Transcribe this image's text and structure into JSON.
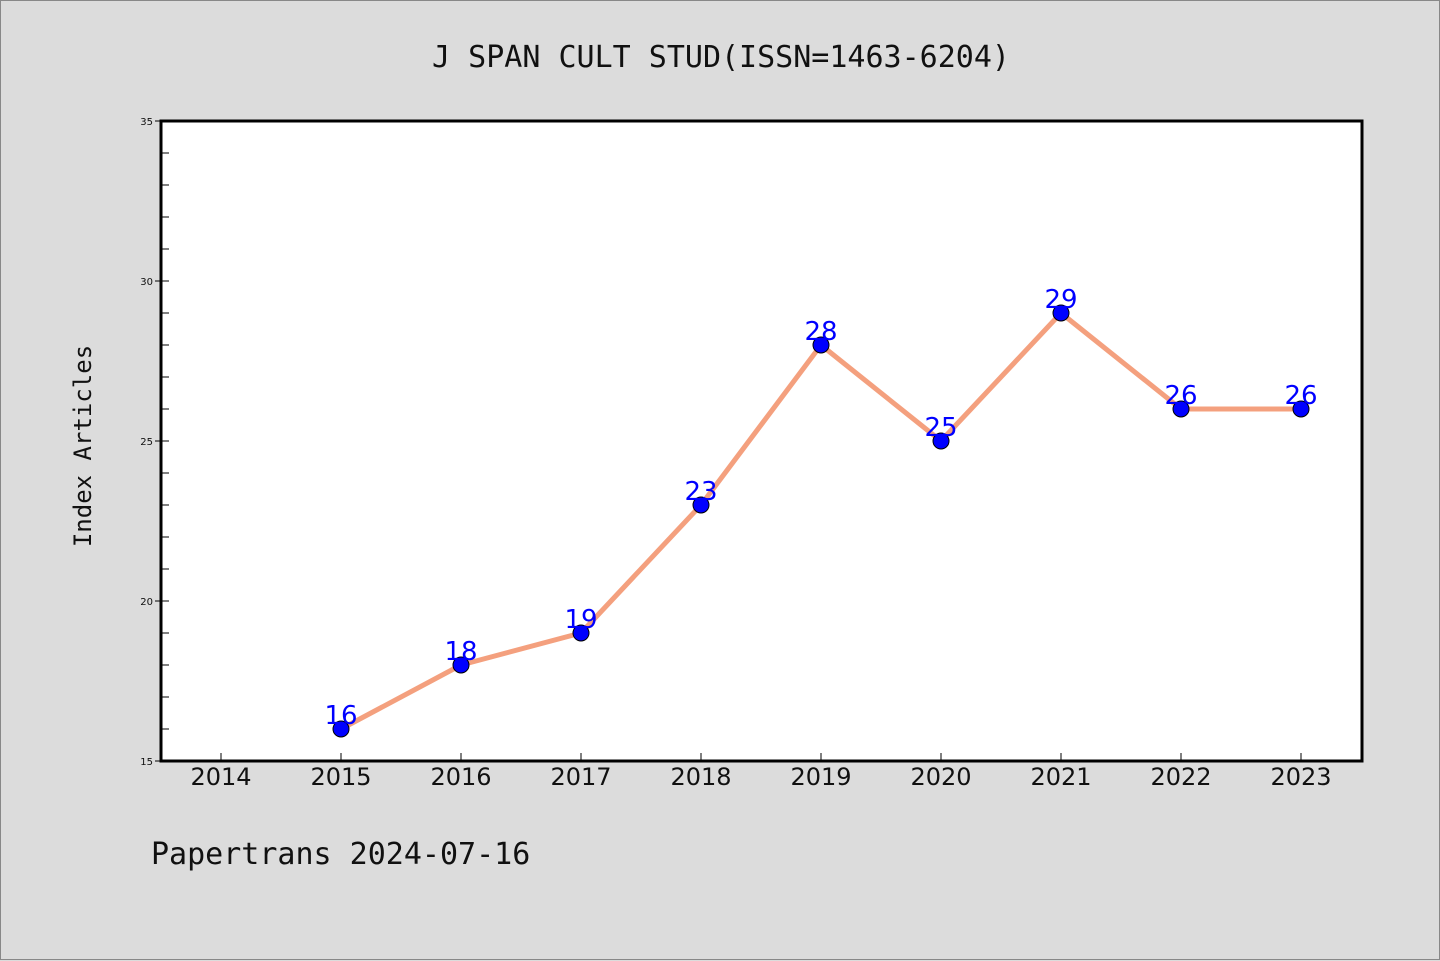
{
  "chart_data": {
    "type": "line",
    "title": "J SPAN CULT STUD(ISSN=1463-6204)",
    "ylabel": "Index Articles",
    "xlabel": "",
    "categories": [
      "2014",
      "2015",
      "2016",
      "2017",
      "2018",
      "2019",
      "2020",
      "2021",
      "2022",
      "2023"
    ],
    "series": [
      {
        "x": [
          "2015",
          "2016",
          "2017",
          "2018",
          "2019",
          "2020",
          "2021",
          "2022",
          "2023"
        ],
        "values": [
          16,
          18,
          19,
          23,
          28,
          25,
          29,
          26,
          26
        ]
      }
    ],
    "ylim": [
      15,
      35
    ],
    "yticks": [
      15,
      20,
      25,
      30,
      35
    ],
    "line_color": "#f4a07e",
    "marker_color": "#0000ff",
    "label_color": "#0000ff",
    "grid": false
  },
  "footer": {
    "text": "Papertrans 2024-07-16"
  }
}
